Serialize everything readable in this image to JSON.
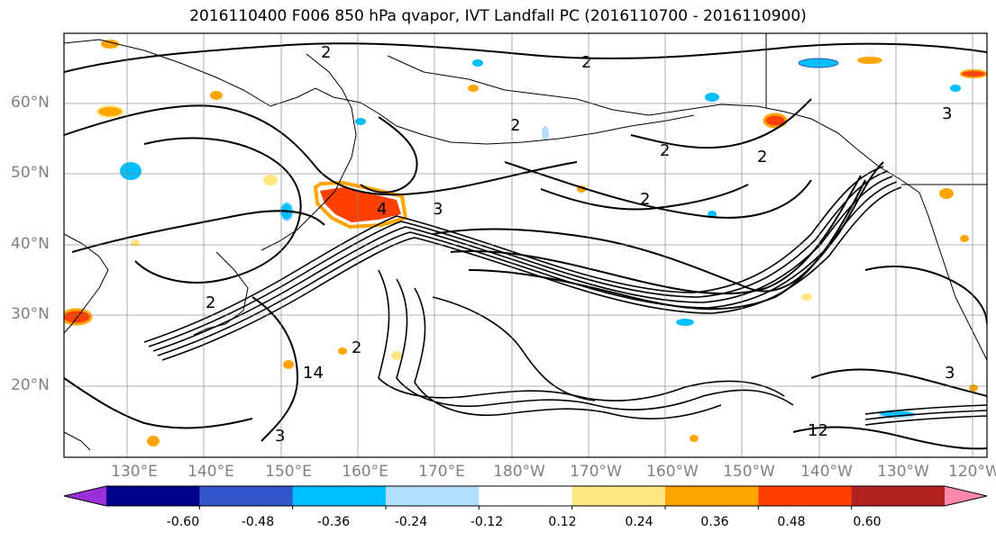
{
  "title": "2016110400 F006 850 hPa qvapor, IVT Landfall PC (2016110700 - 2016110900)",
  "lat_labels": [
    "60°N",
    "50°N",
    "40°N",
    "30°N",
    "20°N"
  ],
  "lon_labels": [
    "130°E",
    "140°E",
    "150°E",
    "160°E",
    "170°E",
    "180°W",
    "170°W",
    "160°W",
    "150°W",
    "140°W",
    "130°W",
    "120°W"
  ],
  "colorbar": {
    "colors": [
      "#9b30d9",
      "#00008b",
      "#3355cc",
      "#00bfff",
      "#b3e0ff",
      "#ffffff",
      "#ffe680",
      "#ffa500",
      "#ff4000",
      "#b22222",
      "#ff88aa"
    ],
    "tick_labels": [
      "-0.60",
      "-0.48",
      "-0.36",
      "-0.24",
      "-0.12",
      "0.12",
      "0.24",
      "0.36",
      "0.48",
      "0.60"
    ]
  },
  "contour_labels": [
    "2",
    "2",
    "2",
    "2",
    "2",
    "2",
    "3",
    "4",
    "14",
    "2",
    "3",
    "2",
    "12",
    "3",
    "3"
  ]
}
